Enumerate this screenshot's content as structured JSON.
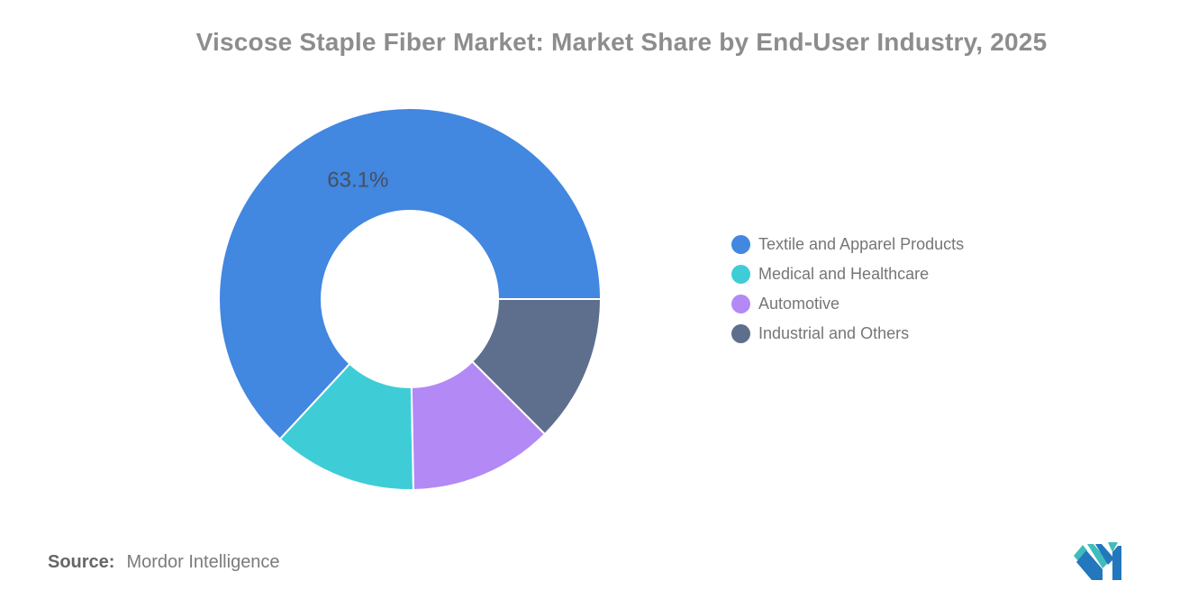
{
  "chart_data": {
    "type": "pie",
    "subtype": "donut",
    "title": "Viscose Staple Fiber Market: Market Share by End-User Industry, 2025",
    "unit": "%",
    "start_angle_deg": 0,
    "direction": "counterclockwise",
    "donut_hole_ratio": 0.46,
    "legend_position": "right",
    "label_color": "#46505e",
    "series": [
      {
        "name": "Textile and Apparel Products",
        "value": 63.1,
        "color": "#4287E0",
        "label": "63.1%"
      },
      {
        "name": "Medical and Healthcare",
        "value": 12.2,
        "color": "#3ECDD6",
        "label": ""
      },
      {
        "name": "Automotive",
        "value": 12.2,
        "color": "#B289F5",
        "label": ""
      },
      {
        "name": "Industrial and Others",
        "value": 12.5,
        "color": "#5E6F8E",
        "label": ""
      }
    ]
  },
  "source": {
    "label": "Source:",
    "value": "Mordor Intelligence"
  },
  "logo": {
    "name": "Mordor Intelligence logo",
    "teal_color": "#41BCBB",
    "blue_color": "#2277BD"
  }
}
